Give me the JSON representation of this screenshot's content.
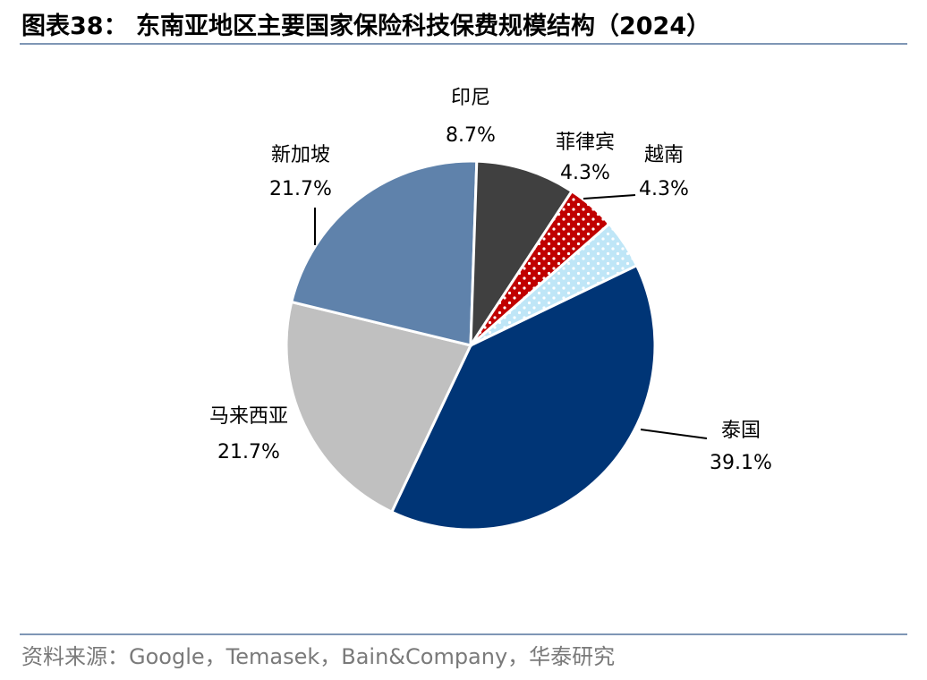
{
  "title": "图表38：  东南亚地区主要国家保险科技保费规模结构（2024）",
  "source": "资料来源：Google，Temasek，Bain&Company，华泰研究",
  "chart_data": {
    "type": "pie",
    "title": "图表38：  东南亚地区主要国家保险科技保费规模结构（2024）",
    "unit": "%",
    "slices": [
      {
        "name": "泰国",
        "value": 39.1,
        "label": "39.1%",
        "color": "#003576",
        "pattern": "solid"
      },
      {
        "name": "马来西亚",
        "value": 21.7,
        "label": "21.7%",
        "color": "#c0c0c0",
        "pattern": "solid"
      },
      {
        "name": "新加坡",
        "value": 21.7,
        "label": "21.7%",
        "color": "#5f82ab",
        "pattern": "solid"
      },
      {
        "name": "印尼",
        "value": 8.7,
        "label": "8.7%",
        "color": "#404040",
        "pattern": "solid"
      },
      {
        "name": "菲律宾",
        "value": 4.3,
        "label": "4.3%",
        "color": "#c00000",
        "pattern": "white-dots"
      },
      {
        "name": "越南",
        "value": 4.3,
        "label": "4.3%",
        "color": "#bfe6f7",
        "pattern": "white-dots"
      }
    ]
  }
}
